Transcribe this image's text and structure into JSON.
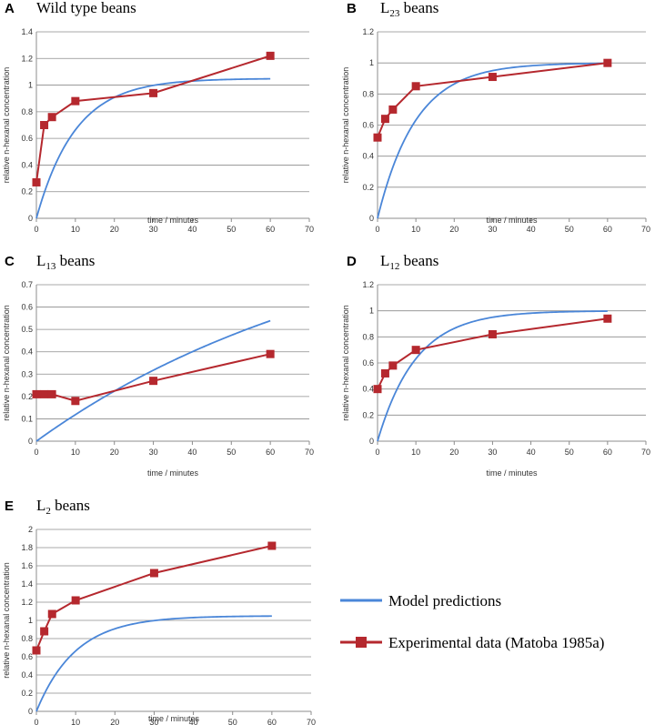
{
  "colors": {
    "model": "#4a86d8",
    "experimental": "#b5282e",
    "grid": "#8c8c8c",
    "axis": "#8c8c8c"
  },
  "legend": {
    "model_label": "Model predictions",
    "experimental_label": "Experimental data (Matoba 1985a)"
  },
  "chart_data": [
    {
      "type": "line",
      "letter": "A",
      "title": "Wild type beans",
      "title_main": "Wild type beans",
      "title_sub": "",
      "title_tail": "",
      "xlabel": "time / minutes",
      "ylabel": "relative n-hexanal concentration",
      "xlim": [
        0,
        70
      ],
      "ylim": [
        0,
        1.4
      ],
      "xticks": [
        "0",
        "10",
        "20",
        "30",
        "40",
        "50",
        "60",
        "70"
      ],
      "yticks": [
        "0",
        "0.2",
        "0.4",
        "0.6",
        "0.8",
        "1",
        "1.2",
        "1.4"
      ],
      "grid": true,
      "series": [
        {
          "name": "Model predictions",
          "kind": "model",
          "asymptote": 1.05,
          "rate": 0.1
        },
        {
          "name": "Experimental data (Matoba 1985a)",
          "kind": "experimental",
          "x": [
            0,
            2,
            4,
            10,
            30,
            60
          ],
          "y": [
            0.27,
            0.7,
            0.76,
            0.88,
            0.94,
            1.22
          ]
        }
      ]
    },
    {
      "type": "line",
      "letter": "B",
      "title": "L23 beans",
      "title_main": "L",
      "title_sub": "23",
      "title_tail": " beans",
      "xlabel": "time / minutes",
      "ylabel": "relative n-hexanal concentration",
      "xlim": [
        0,
        70
      ],
      "ylim": [
        0,
        1.2
      ],
      "xticks": [
        "0",
        "10",
        "20",
        "30",
        "40",
        "50",
        "60",
        "70"
      ],
      "yticks": [
        "0",
        "0.2",
        "0.4",
        "0.6",
        "0.8",
        "1",
        "1.2"
      ],
      "grid": true,
      "series": [
        {
          "name": "Model predictions",
          "kind": "model",
          "asymptote": 1.0,
          "rate": 0.1
        },
        {
          "name": "Experimental data (Matoba 1985a)",
          "kind": "experimental",
          "x": [
            0,
            2,
            4,
            10,
            30,
            60
          ],
          "y": [
            0.52,
            0.64,
            0.7,
            0.85,
            0.91,
            1.0
          ]
        }
      ]
    },
    {
      "type": "line",
      "letter": "C",
      "title": "L13 beans",
      "title_main": "L",
      "title_sub": "13",
      "title_tail": " beans",
      "xlabel": "time / minutes",
      "ylabel": "relative n-hexanal concentration",
      "xlim": [
        0,
        70
      ],
      "ylim": [
        0,
        0.7
      ],
      "xticks": [
        "0",
        "10",
        "20",
        "30",
        "40",
        "50",
        "60",
        "70"
      ],
      "yticks": [
        "0",
        "0.1",
        "0.2",
        "0.3",
        "0.4",
        "0.5",
        "0.6",
        "0.7"
      ],
      "grid": true,
      "series": [
        {
          "name": "Model predictions",
          "kind": "model",
          "asymptote": 1.05,
          "rate": 0.012
        },
        {
          "name": "Experimental data (Matoba 1985a)",
          "kind": "experimental",
          "x": [
            0,
            2,
            4,
            10,
            30,
            60
          ],
          "y": [
            0.21,
            0.21,
            0.21,
            0.18,
            0.27,
            0.39
          ]
        }
      ]
    },
    {
      "type": "line",
      "letter": "D",
      "title": "L12 beans",
      "title_main": "L",
      "title_sub": "12",
      "title_tail": " beans",
      "xlabel": "time / minutes",
      "ylabel": "relative n-hexanal concentration",
      "xlim": [
        0,
        70
      ],
      "ylim": [
        0,
        1.2
      ],
      "xticks": [
        "0",
        "10",
        "20",
        "30",
        "40",
        "50",
        "60",
        "70"
      ],
      "yticks": [
        "0",
        "0.2",
        "0.4",
        "0.6",
        "0.8",
        "1",
        "1.2"
      ],
      "grid": true,
      "series": [
        {
          "name": "Model predictions",
          "kind": "model",
          "asymptote": 1.0,
          "rate": 0.1
        },
        {
          "name": "Experimental data (Matoba 1985a)",
          "kind": "experimental",
          "x": [
            0,
            2,
            4,
            10,
            30,
            60
          ],
          "y": [
            0.4,
            0.52,
            0.58,
            0.7,
            0.82,
            0.94
          ]
        }
      ]
    },
    {
      "type": "line",
      "letter": "E",
      "title": "L2 beans",
      "title_main": "L",
      "title_sub": "2",
      "title_tail": " beans",
      "xlabel": "time / minutes",
      "ylabel": "relative n-hexanal concentration",
      "xlim": [
        0,
        70
      ],
      "ylim": [
        0,
        2
      ],
      "xticks": [
        "0",
        "10",
        "20",
        "30",
        "40",
        "50",
        "60",
        "70"
      ],
      "yticks": [
        "0",
        "0.2",
        "0.4",
        "0.6",
        "0.8",
        "1",
        "1.2",
        "1.4",
        "1.6",
        "1.8",
        "2"
      ],
      "grid": true,
      "series": [
        {
          "name": "Model predictions",
          "kind": "model",
          "asymptote": 1.05,
          "rate": 0.1
        },
        {
          "name": "Experimental data (Matoba 1985a)",
          "kind": "experimental",
          "x": [
            0,
            2,
            4,
            10,
            30,
            60
          ],
          "y": [
            0.67,
            0.88,
            1.07,
            1.22,
            1.52,
            1.82
          ]
        }
      ]
    }
  ]
}
